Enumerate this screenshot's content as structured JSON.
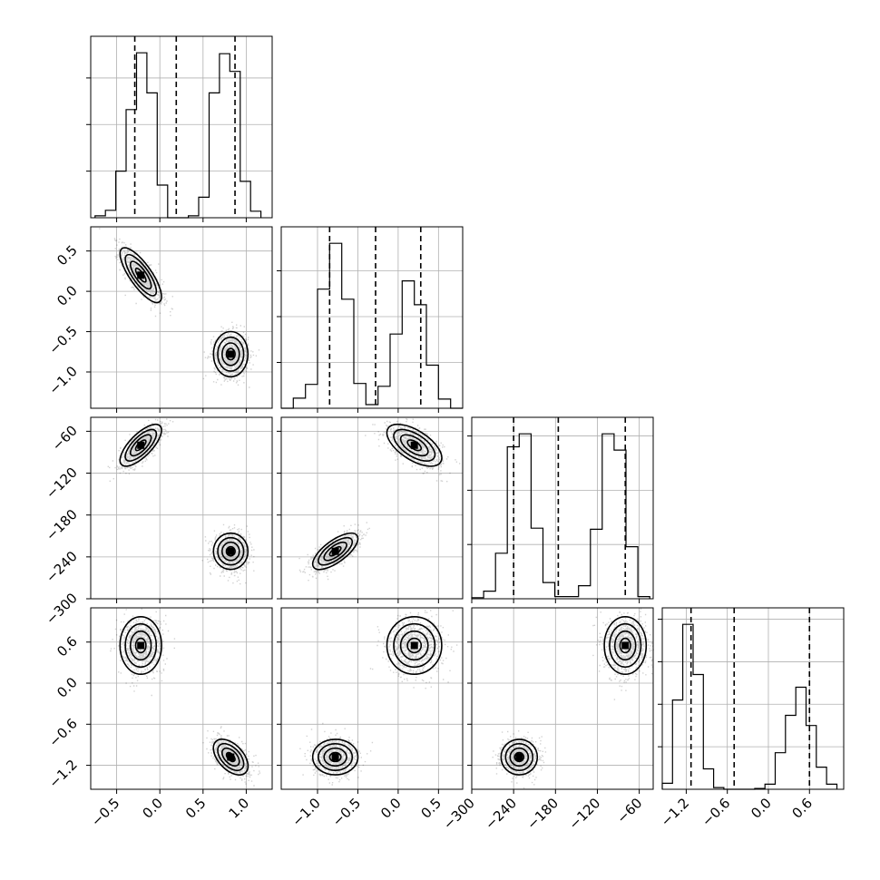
{
  "chart_data": {
    "type": "corner",
    "parameters": [
      {
        "range": [
          -0.8,
          1.3
        ],
        "ticks": [
          -0.5,
          0.0,
          0.5,
          1.0
        ],
        "tick_labels": [
          "−0.5",
          "0.0",
          "0.5",
          "1.0"
        ]
      },
      {
        "range": [
          -1.45,
          0.8
        ],
        "ticks": [
          -1.0,
          -0.5,
          0.0,
          0.5
        ],
        "tick_labels": [
          "−1.0",
          "−0.5",
          "0.0",
          "0.5"
        ]
      },
      {
        "range": [
          -300,
          -40
        ],
        "ticks": [
          -300,
          -240,
          -180,
          -120,
          -60
        ],
        "tick_labels": [
          "−300",
          "−240",
          "−180",
          "−120",
          "−60"
        ]
      },
      {
        "range": [
          -1.55,
          1.1
        ],
        "ticks": [
          -1.2,
          -0.6,
          0.0,
          0.6
        ],
        "tick_labels": [
          "−1.2",
          "−0.6",
          "0.0",
          "0.6"
        ]
      }
    ],
    "histograms": [
      {
        "param": 0,
        "bins": [
          -0.75,
          -0.63,
          -0.51,
          -0.39,
          -0.27,
          -0.15,
          -0.03,
          0.09,
          0.21,
          0.33,
          0.45,
          0.57,
          0.69,
          0.81,
          0.93,
          1.05,
          1.17
        ],
        "counts": [
          2,
          8,
          50,
          116,
          177,
          134,
          35,
          0,
          0,
          2,
          22,
          134,
          176,
          157,
          39,
          7
        ],
        "quantiles": [
          -0.29,
          0.19,
          0.87
        ]
      },
      {
        "param": 1,
        "bins": [
          -1.45,
          -1.3,
          -1.15,
          -1.0,
          -0.85,
          -0.7,
          -0.55,
          -0.4,
          -0.25,
          -0.1,
          0.05,
          0.2,
          0.35,
          0.5,
          0.65,
          0.8
        ],
        "counts": [
          0,
          11,
          26,
          130,
          180,
          119,
          27,
          4,
          24,
          81,
          139,
          113,
          47,
          10,
          0
        ],
        "quantiles": [
          -0.85,
          -0.28,
          0.28
        ]
      },
      {
        "param": 2,
        "bins": [
          -300,
          -283,
          -266,
          -249,
          -232,
          -215,
          -198,
          -181,
          -164,
          -147,
          -130,
          -113,
          -96,
          -79,
          -62,
          -45
        ],
        "counts": [
          1,
          7,
          42,
          140,
          152,
          65,
          15,
          2,
          2,
          12,
          64,
          152,
          137,
          48,
          2
        ],
        "quantiles": [
          -240,
          -176,
          -80
        ]
      },
      {
        "param": 3,
        "bins": [
          -1.55,
          -1.4,
          -1.25,
          -1.1,
          -0.95,
          -0.8,
          -0.65,
          -0.5,
          -0.35,
          -0.2,
          -0.05,
          0.1,
          0.25,
          0.4,
          0.55,
          0.7,
          0.85,
          1.0
        ],
        "counts": [
          7,
          105,
          194,
          135,
          24,
          2,
          0,
          0,
          0,
          1,
          6,
          43,
          87,
          120,
          75,
          26,
          6
        ],
        "quantiles": [
          -1.13,
          -0.5,
          0.6
        ]
      }
    ],
    "clusters": [
      {
        "center": [
          -0.22,
          0.2,
          -80,
          0.55
        ],
        "sd": [
          0.12,
          0.17,
          15,
          0.21
        ],
        "rho": [
          [
            1,
            -0.78,
            0.72,
            0.0
          ],
          [
            -0.78,
            1,
            -0.6,
            0.0
          ],
          [
            0.72,
            -0.6,
            1,
            0.0
          ],
          [
            0.0,
            0.0,
            0.0,
            1
          ]
        ]
      },
      {
        "center": [
          0.82,
          -0.78,
          -232,
          -1.08
        ],
        "sd": [
          0.1,
          0.14,
          13,
          0.13
        ],
        "rho": [
          [
            1,
            0.0,
            0.0,
            -0.5
          ],
          [
            0.0,
            1,
            0.7,
            0.0
          ],
          [
            0.0,
            0.7,
            1,
            0.0
          ],
          [
            -0.5,
            0.0,
            0.0,
            1
          ]
        ]
      }
    ]
  }
}
